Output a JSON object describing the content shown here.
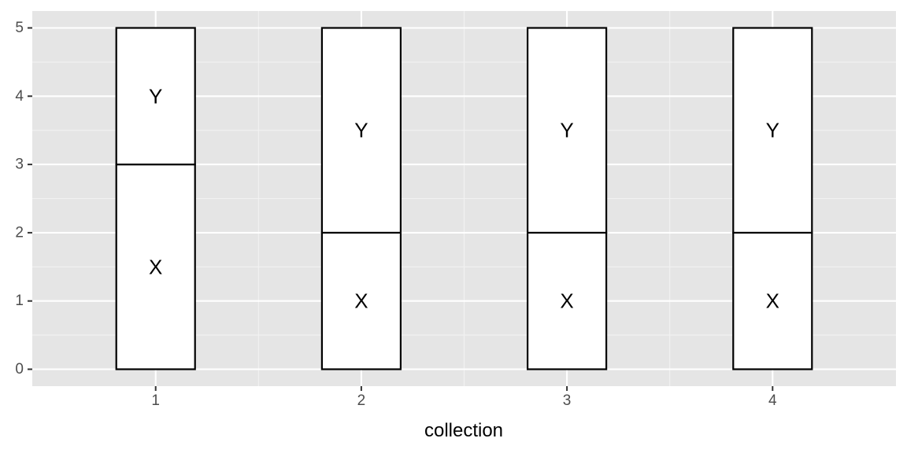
{
  "colors": {
    "panel_background": "#e5e5e5",
    "grid_major": "#ffffff",
    "grid_minor": "#f2f2f2",
    "bar_fill": "#ffffff",
    "bar_outline": "#000000",
    "tick_text": "#4d4d4d",
    "label_text": "#000000"
  },
  "chart_data": {
    "type": "bar",
    "stacked": true,
    "title": "",
    "xlabel": "collection",
    "ylabel": "",
    "categories": [
      "1",
      "2",
      "3",
      "4"
    ],
    "series": [
      {
        "name": "X",
        "values": [
          3,
          2,
          2,
          2
        ]
      },
      {
        "name": "Y",
        "values": [
          2,
          3,
          3,
          3
        ]
      }
    ],
    "segment_labels": [
      "X",
      "Y"
    ],
    "yticks": [
      "0",
      "1",
      "2",
      "3",
      "4",
      "5"
    ],
    "ylim": [
      0,
      5
    ],
    "grid": true,
    "legend": "none"
  }
}
